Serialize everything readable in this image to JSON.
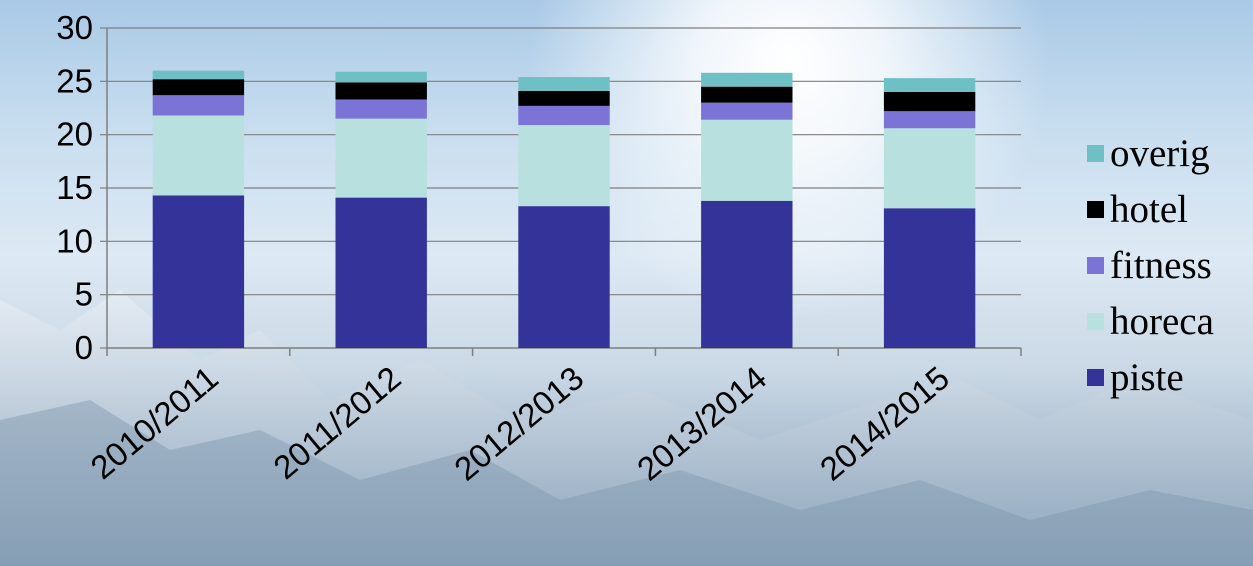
{
  "chart_data": {
    "type": "bar",
    "stacked": true,
    "title": "",
    "xlabel": "",
    "ylabel": "",
    "ylim": [
      0,
      30
    ],
    "yticks": [
      0,
      5,
      10,
      15,
      20,
      25,
      30
    ],
    "grid": true,
    "legend_position": "right",
    "categories": [
      "2010/2011",
      "2011/2012",
      "2012/2013",
      "2013/2014",
      "2014/2015"
    ],
    "series": [
      {
        "name": "piste",
        "color": "#333399",
        "values": [
          14.3,
          14.1,
          13.3,
          13.8,
          13.1
        ]
      },
      {
        "name": "horeca",
        "color": "#b7e0df",
        "values": [
          7.5,
          7.4,
          7.6,
          7.6,
          7.5
        ]
      },
      {
        "name": "fitness",
        "color": "#7b73d6",
        "values": [
          1.9,
          1.8,
          1.8,
          1.6,
          1.6
        ]
      },
      {
        "name": "hotel",
        "color": "#000000",
        "values": [
          1.5,
          1.6,
          1.4,
          1.5,
          1.8
        ]
      },
      {
        "name": "overig",
        "color": "#6fc0c5",
        "values": [
          0.8,
          1.0,
          1.3,
          1.3,
          1.3
        ]
      }
    ]
  }
}
